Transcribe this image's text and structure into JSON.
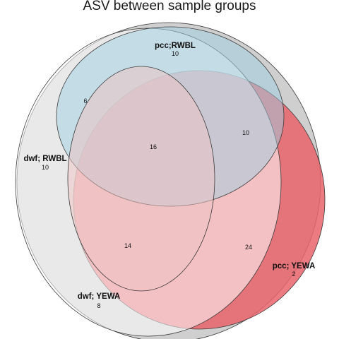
{
  "title": "ASV between sample groups",
  "colors": {
    "outer_set": "#cfcfcf",
    "dwf_rwbl": "#ffffff",
    "pcc_rwbl": "#9fd0e2",
    "pcc_yewa": "#e8636b",
    "dwf_yewa": "#f0c3c3"
  },
  "sets": [
    {
      "name": "pcc;RWBL",
      "count": "10"
    },
    {
      "name": "dwf; RWBL",
      "count": "10"
    },
    {
      "name": "pcc; YEWA",
      "count": "2"
    },
    {
      "name": "dwf; YEWA",
      "count": "8"
    }
  ],
  "regions": [
    {
      "label": "6"
    },
    {
      "label": "10"
    },
    {
      "label": "16"
    },
    {
      "label": "14"
    },
    {
      "label": "24"
    }
  ]
}
